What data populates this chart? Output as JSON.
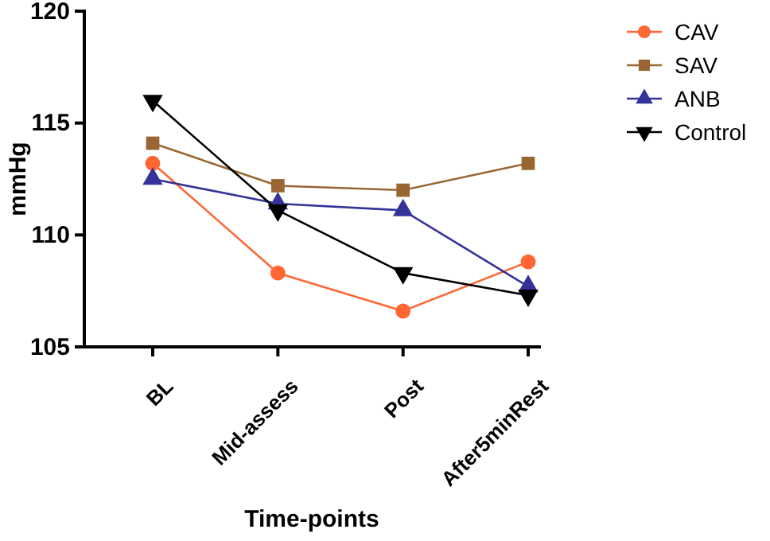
{
  "chart_data": {
    "type": "line",
    "xlabel": "Time-points",
    "ylabel": "mmHg",
    "categories": [
      "BL",
      "Mid-assess",
      "Post",
      "After5minRest"
    ],
    "ylim": [
      105,
      120
    ],
    "yticks": [
      105,
      110,
      115,
      120
    ],
    "grid": false,
    "legend": "right",
    "series": [
      {
        "name": "CAV",
        "color": "#ff6633",
        "marker": "circle",
        "values": [
          113.2,
          108.3,
          106.6,
          108.8
        ]
      },
      {
        "name": "SAV",
        "color": "#996633",
        "marker": "square",
        "values": [
          114.1,
          112.2,
          112.0,
          113.2
        ]
      },
      {
        "name": "ANB",
        "color": "#333399",
        "marker": "triangle",
        "values": [
          112.5,
          111.4,
          111.1,
          107.7
        ]
      },
      {
        "name": "Control",
        "color": "#000000",
        "marker": "triangle-down",
        "values": [
          116.0,
          111.1,
          108.3,
          107.3
        ]
      }
    ]
  }
}
